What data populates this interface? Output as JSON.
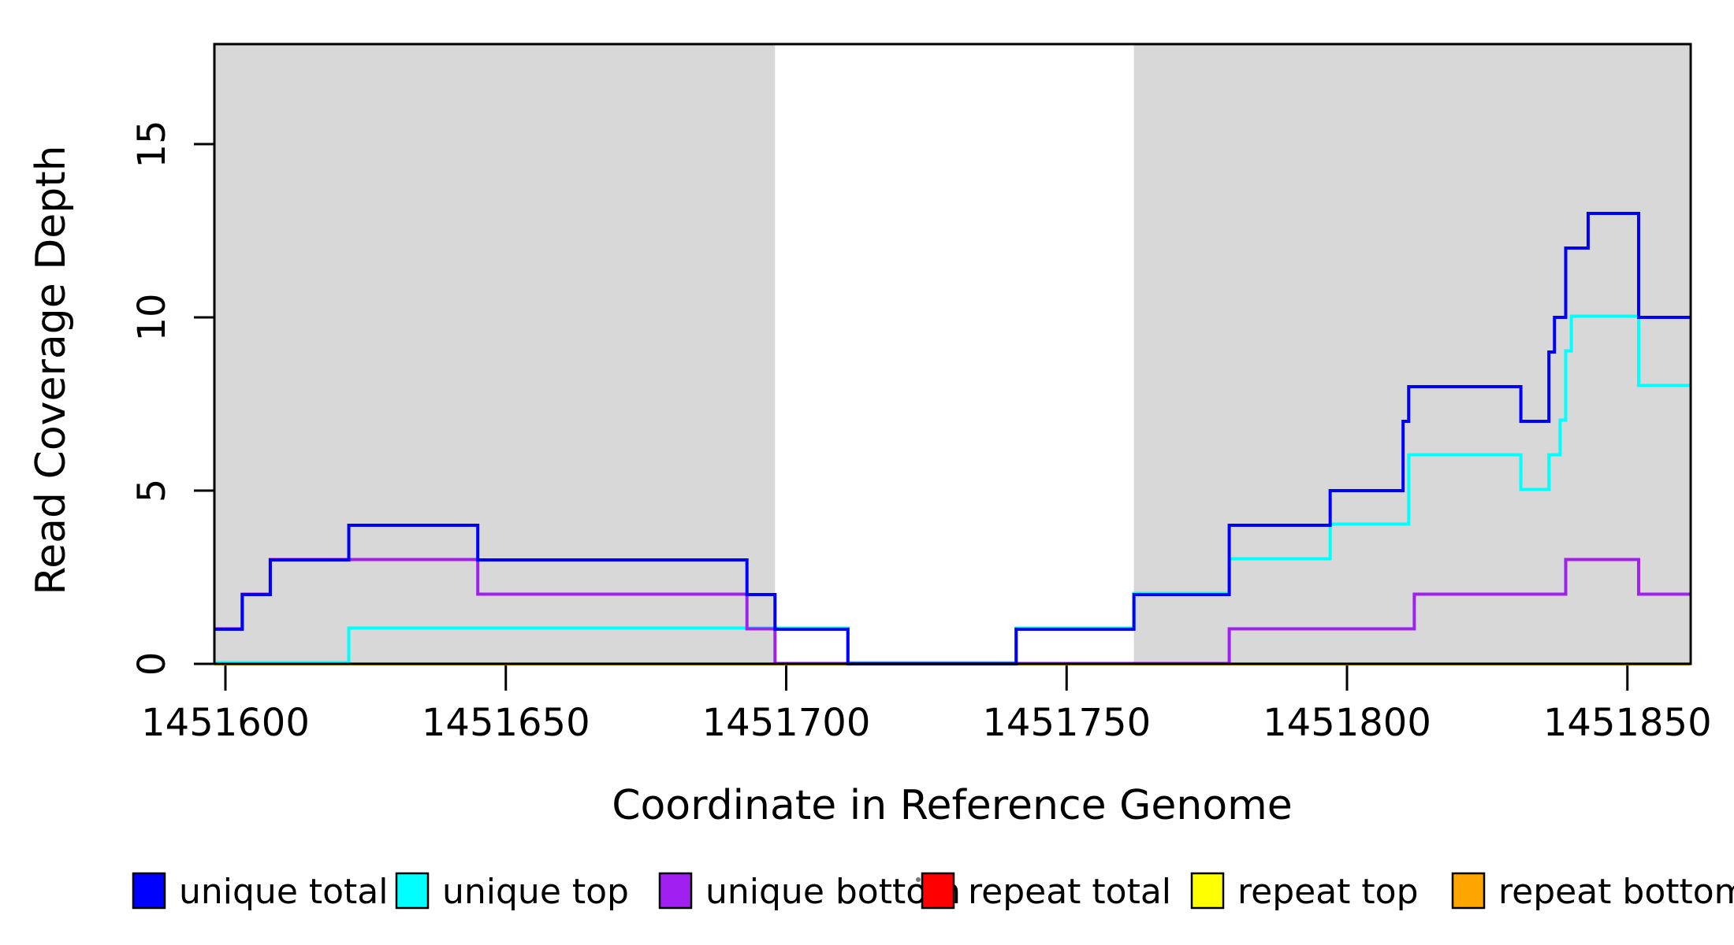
{
  "figure": {
    "background": "#ffffff",
    "stray_mark_color": "#777777"
  },
  "axes": {
    "x": {
      "label": "Coordinate in Reference Genome",
      "tick_values": [
        1451600,
        1451650,
        1451700,
        1451750,
        1451800,
        1451850
      ]
    },
    "y": {
      "label": "Read Coverage Depth",
      "tick_values": [
        0,
        5,
        10,
        15
      ]
    }
  },
  "legend": {
    "items": [
      {
        "label": "unique total",
        "color": "#0000FF"
      },
      {
        "label": "unique top",
        "color": "#00FFFF"
      },
      {
        "label": "unique bottom",
        "color": "#A020F0"
      },
      {
        "label": "repeat total",
        "color": "#FF0000"
      },
      {
        "label": "repeat top",
        "color": "#FFFF00"
      },
      {
        "label": "repeat bottom",
        "color": "#FFA500"
      }
    ]
  },
  "chart_data": {
    "type": "line",
    "subtype": "step-coverage",
    "title": "",
    "xlabel": "Coordinate in Reference Genome",
    "ylabel": "Read Coverage Depth",
    "xlim": [
      1451598,
      1451861
    ],
    "ylim": [
      0,
      17.9
    ],
    "x_ticks": [
      1451600,
      1451650,
      1451700,
      1451750,
      1451800,
      1451850
    ],
    "y_ticks": [
      0,
      5,
      10,
      15
    ],
    "grid": false,
    "legend_position": "bottom",
    "shaded_regions": {
      "color": "#D8D8D8",
      "ranges": [
        [
          1451598,
          1451698
        ],
        [
          1451762,
          1451861
        ]
      ]
    },
    "series": [
      {
        "name": "unique total",
        "color": "#0000FF",
        "steps": [
          [
            1451598,
            1
          ],
          [
            1451603,
            2
          ],
          [
            1451608,
            3
          ],
          [
            1451622,
            4
          ],
          [
            1451645,
            3
          ],
          [
            1451693,
            2
          ],
          [
            1451698,
            1
          ],
          [
            1451711,
            0
          ],
          [
            1451741,
            1
          ],
          [
            1451762,
            2
          ],
          [
            1451779,
            4
          ],
          [
            1451797,
            5
          ],
          [
            1451810,
            7
          ],
          [
            1451811,
            8
          ],
          [
            1451831,
            7
          ],
          [
            1451836,
            9
          ],
          [
            1451837,
            10
          ],
          [
            1451839,
            12
          ],
          [
            1451843,
            13
          ],
          [
            1451852,
            10
          ]
        ]
      },
      {
        "name": "unique top",
        "color": "#00FFFF",
        "steps": [
          [
            1451598,
            0
          ],
          [
            1451622,
            1
          ],
          [
            1451711,
            0
          ],
          [
            1451741,
            1
          ],
          [
            1451762,
            2
          ],
          [
            1451779,
            3
          ],
          [
            1451797,
            4
          ],
          [
            1451811,
            6
          ],
          [
            1451831,
            5
          ],
          [
            1451836,
            6
          ],
          [
            1451838,
            7
          ],
          [
            1451839,
            9
          ],
          [
            1451840,
            10
          ],
          [
            1451852,
            8
          ]
        ]
      },
      {
        "name": "unique bottom",
        "color": "#A020F0",
        "steps": [
          [
            1451598,
            1
          ],
          [
            1451603,
            2
          ],
          [
            1451608,
            3
          ],
          [
            1451645,
            2
          ],
          [
            1451693,
            1
          ],
          [
            1451698,
            0
          ],
          [
            1451779,
            1
          ],
          [
            1451812,
            2
          ],
          [
            1451839,
            3
          ],
          [
            1451852,
            2
          ]
        ]
      },
      {
        "name": "repeat total",
        "color": "#FF0000",
        "steps": [
          [
            1451598,
            0
          ]
        ]
      },
      {
        "name": "repeat top",
        "color": "#FFFF00",
        "steps": [
          [
            1451598,
            0
          ]
        ]
      },
      {
        "name": "repeat bottom",
        "color": "#FFA500",
        "steps": [
          [
            1451598,
            0
          ]
        ]
      }
    ]
  }
}
